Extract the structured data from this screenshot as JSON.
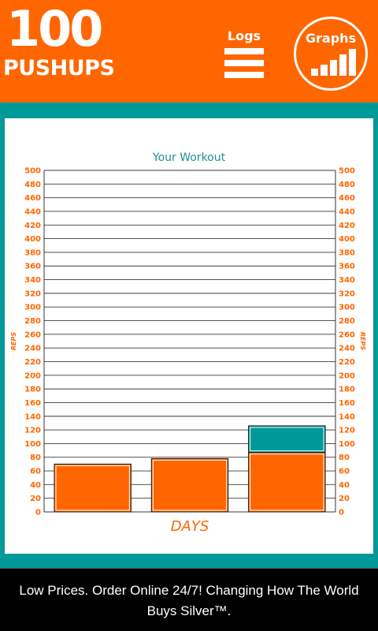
{
  "header": {
    "logo_number": "100",
    "logo_text": "PUSHUPS",
    "logs_label": "Logs",
    "graphs_label": "Graphs"
  },
  "chart_data": {
    "type": "bar",
    "title": "Your Workout",
    "xlabel": "DAYS",
    "ylabel": "REPS",
    "ylim": [
      0,
      500
    ],
    "y_ticks": [
      0,
      20,
      40,
      60,
      80,
      100,
      120,
      140,
      160,
      180,
      200,
      220,
      240,
      260,
      280,
      300,
      320,
      340,
      360,
      380,
      400,
      420,
      440,
      460,
      480,
      500
    ],
    "grid": true,
    "stacked": true,
    "categories": [
      "",
      "",
      ""
    ],
    "series": [
      {
        "values": [
          70,
          78,
          87
        ],
        "color": "#ff6600"
      },
      {
        "values": [
          0,
          0,
          39
        ],
        "color": "#009999"
      }
    ]
  },
  "colors": {
    "accent": "#ff6600",
    "teal": "#009999",
    "title_teal": "#1f8f94"
  },
  "ad": {
    "text": "Low Prices. Order Online 24/7! Changing How The World Buys Silver™."
  }
}
